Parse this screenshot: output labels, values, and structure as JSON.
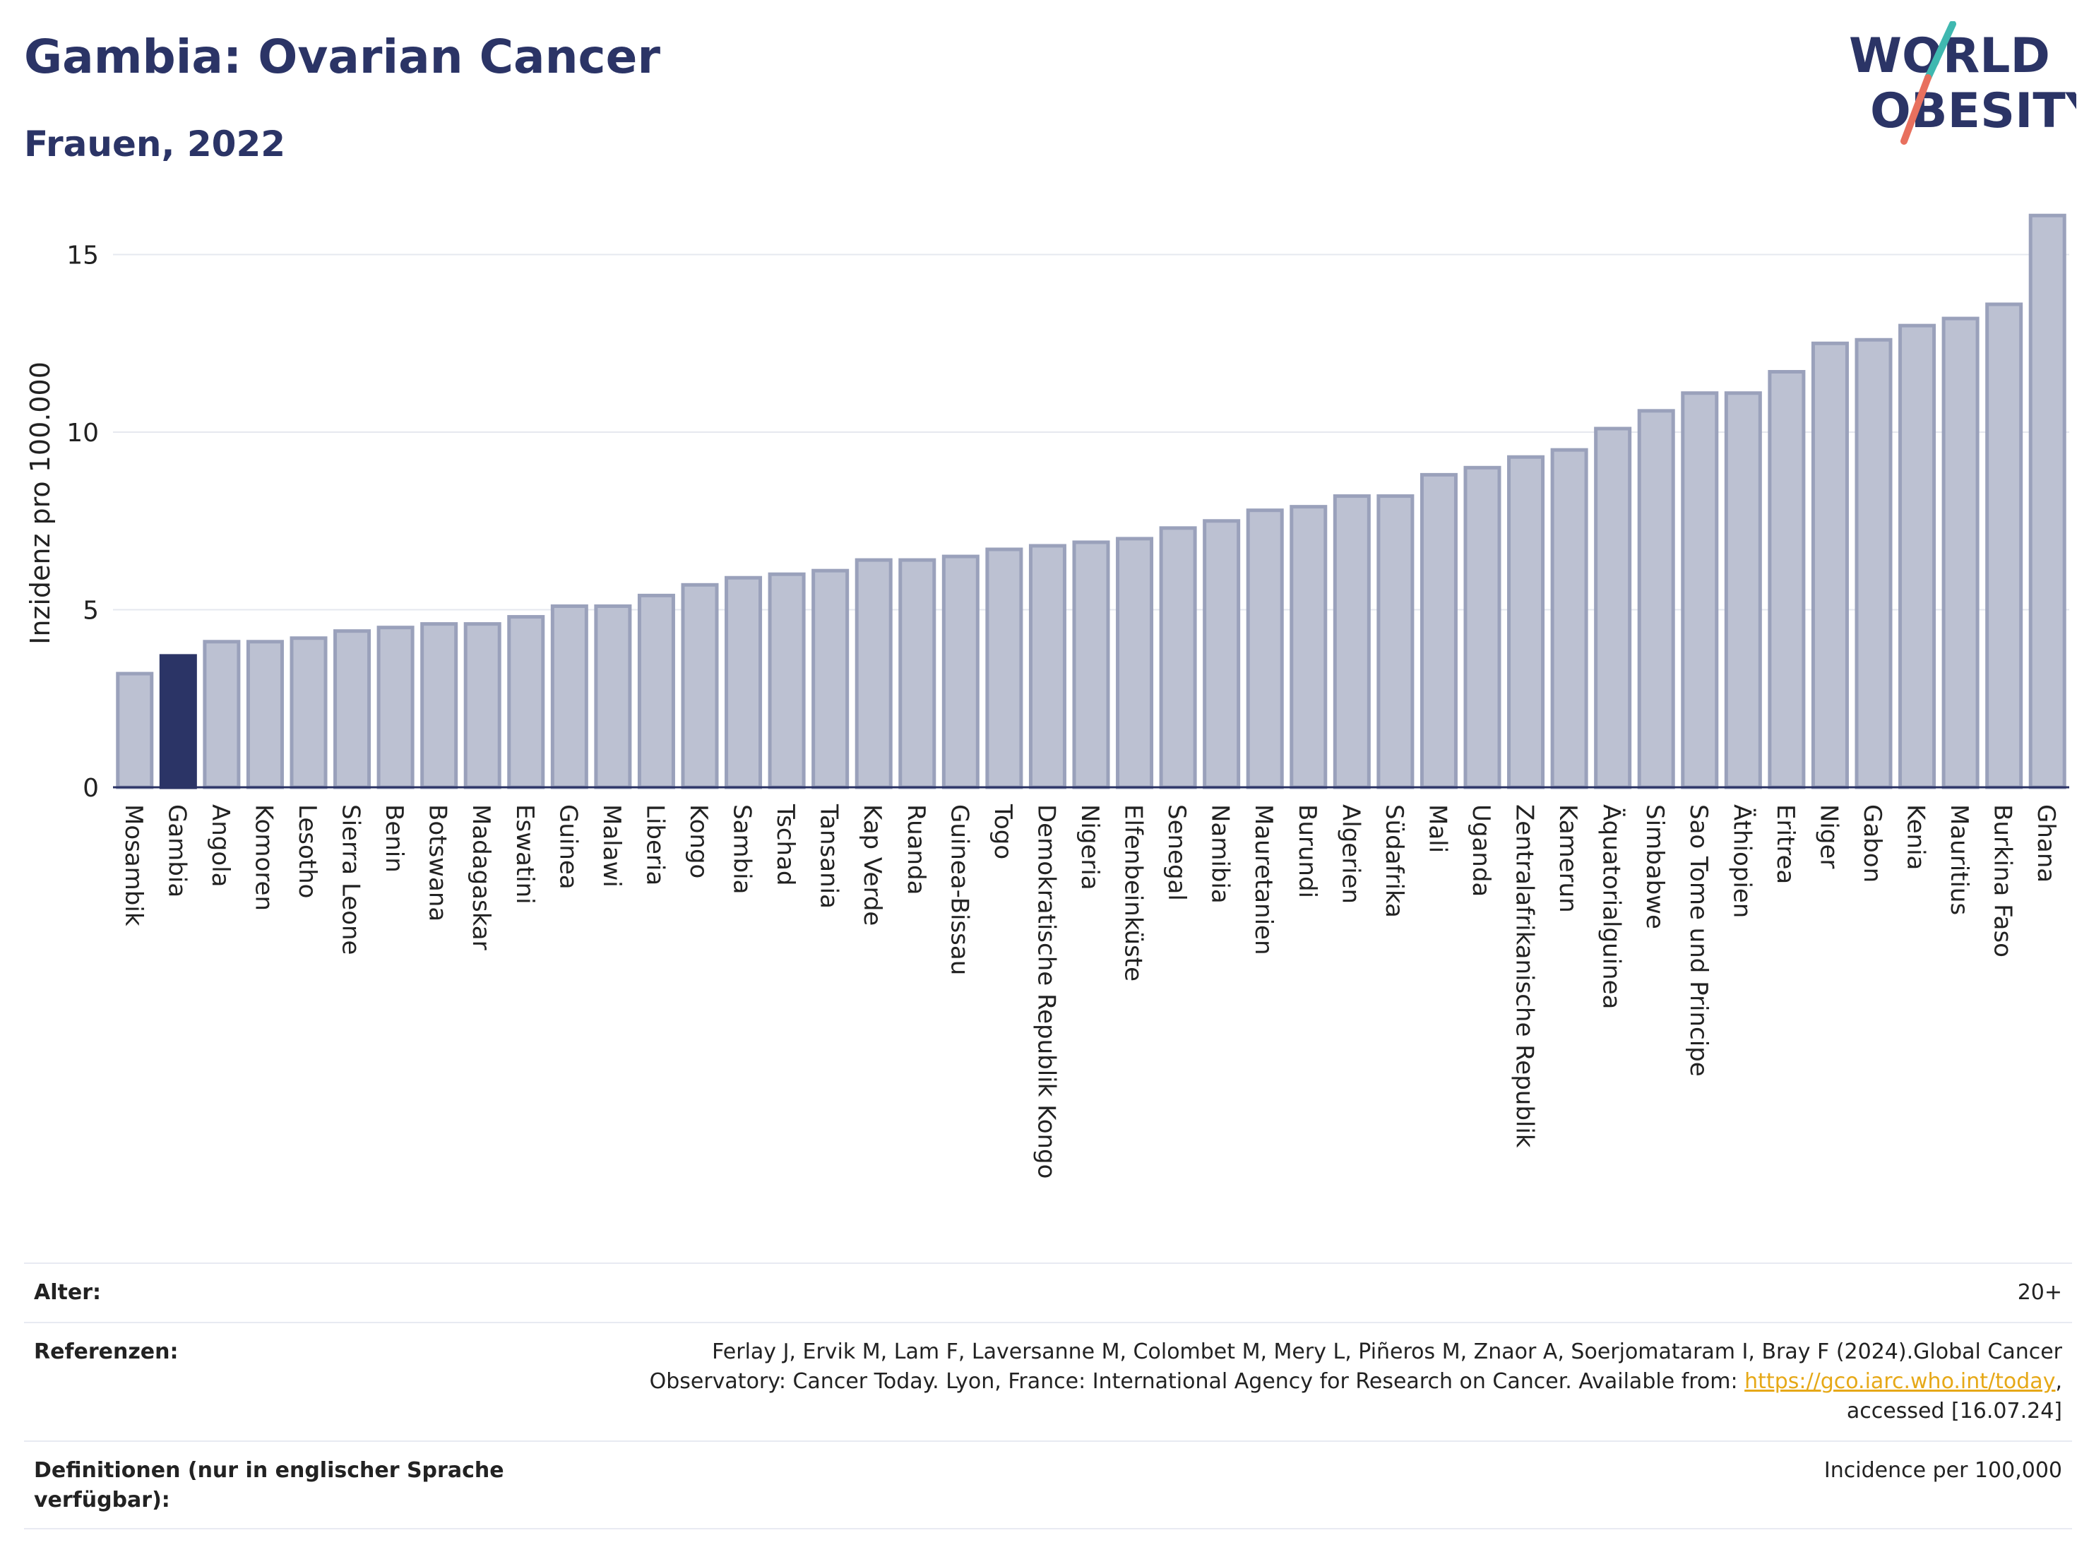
{
  "header": {
    "title": "Gambia: Ovarian Cancer",
    "subtitle": "Frauen, 2022"
  },
  "logo": {
    "line1": "WORLD",
    "line2": "OBESITY"
  },
  "colors": {
    "bar": "#bcc1d2",
    "bar_edge": "#9aa1bb",
    "highlight": "#2b3466",
    "text_dark": "#2b3466",
    "link": "#e6a817"
  },
  "chart_data": {
    "type": "bar",
    "title": "Gambia: Ovarian Cancer",
    "subtitle": "Frauen, 2022",
    "xlabel": "",
    "ylabel": "Inzidenz pro 100.000",
    "ylim": [
      0,
      16.8
    ],
    "yticks": [
      0,
      5,
      10,
      15
    ],
    "highlight": "Gambia",
    "grid": true,
    "categories": [
      "Mosambik",
      "Gambia",
      "Angola",
      "Komoren",
      "Lesotho",
      "Sierra Leone",
      "Benin",
      "Botswana",
      "Madagaskar",
      "Eswatini",
      "Guinea",
      "Malawi",
      "Liberia",
      "Kongo",
      "Sambia",
      "Tschad",
      "Tansania",
      "Kap Verde",
      "Ruanda",
      "Guinea-Bissau",
      "Togo",
      "Demokratische Republik Kongo",
      "Nigeria",
      "Elfenbeinküste",
      "Senegal",
      "Namibia",
      "Mauretanien",
      "Burundi",
      "Algerien",
      "Südafrika",
      "Mali",
      "Uganda",
      "Zentralafrikanische Republik",
      "Kamerun",
      "Äquatorialguinea",
      "Simbabwe",
      "Sao Tome und Principe",
      "Äthiopien",
      "Eritrea",
      "Niger",
      "Gabon",
      "Kenia",
      "Mauritius",
      "Burkina Faso",
      "Ghana"
    ],
    "values": [
      3.2,
      3.7,
      4.1,
      4.1,
      4.2,
      4.4,
      4.5,
      4.6,
      4.6,
      4.8,
      5.1,
      5.1,
      5.4,
      5.7,
      5.9,
      6.0,
      6.1,
      6.4,
      6.4,
      6.5,
      6.7,
      6.8,
      6.9,
      7.0,
      7.3,
      7.5,
      7.8,
      7.9,
      8.2,
      8.2,
      8.8,
      9.0,
      9.3,
      9.5,
      10.1,
      10.6,
      11.1,
      11.1,
      11.7,
      12.5,
      12.6,
      13.0,
      13.2,
      13.6,
      16.1
    ]
  },
  "footer": {
    "age_label": "Alter:",
    "age_value": "20+",
    "ref_label": "Referenzen:",
    "ref_line1": "Ferlay J, Ervik M, Lam F, Laversanne M, Colombet M, Mery L, Piñeros M, Znaor A, Soerjomataram I, Bray F (2024).Global Cancer",
    "ref_line2_pre": "Observatory: Cancer Today. Lyon, France: International Agency for Research on Cancer. Available from: ",
    "ref_link": "https://gco.iarc.who.int/today",
    "ref_line2_post": ",",
    "ref_line3": "accessed [16.07.24]",
    "def_label_line1": "Definitionen (nur in englischer Sprache",
    "def_label_line2": "verfügbar):",
    "def_value": "Incidence per 100,000"
  }
}
